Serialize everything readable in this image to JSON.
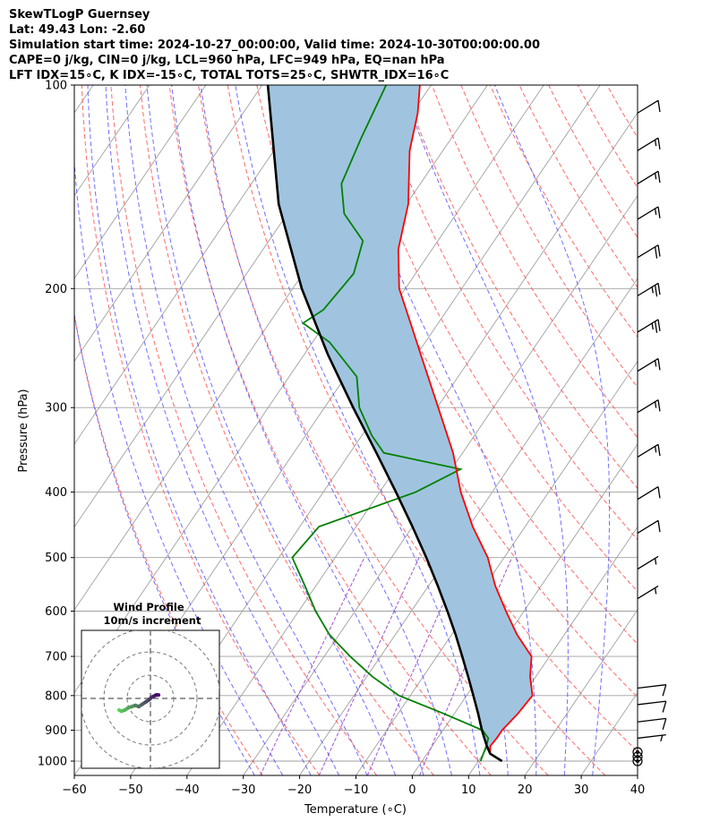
{
  "title_lines": [
    "SkewTLogP Guernsey",
    "Lat: 49.43   Lon: -2.60",
    "Simulation start time: 2024-10-27_00:00:00, Valid time: 2024-10-30T00:00:00.00",
    "CAPE=0 j/kg, CIN=0 j/kg, LCL=960 hPa, LFC=949 hPa, EQ=nan hPa",
    "LFT IDX=15∘C, K IDX=-15∘C, TOTAL TOTS=25∘C, SHWTR_IDX=16∘C"
  ],
  "colors": {
    "temperature": "#ff0000",
    "dewpoint": "#008000",
    "parcel": "#000000",
    "shading": "#a0c4df",
    "dry_adiabats": "#ff5050",
    "moist_adiabats": "#4a4aff",
    "mixing_ratio": "#9a3fc8",
    "isotherms": "#a0a0a0"
  },
  "chart_data": {
    "type": "skewt",
    "xlabel": "Temperature ($^{\\circ}$C)",
    "xlabel_display": "Temperature (∘C)",
    "ylabel": "Pressure (hPa)",
    "xlim": [
      -60,
      40
    ],
    "ylim": [
      1050,
      100
    ],
    "x_ticks": [
      -60,
      -50,
      -40,
      -30,
      -20,
      -10,
      0,
      10,
      20,
      30,
      40
    ],
    "x_tick_labels": [
      "−60",
      "−50",
      "−40",
      "−30",
      "−20",
      "−10",
      "0",
      "10",
      "20",
      "30",
      "40"
    ],
    "y_ticks": [
      1000,
      900,
      800,
      700,
      600,
      500,
      400,
      300,
      200,
      100
    ],
    "y_tick_labels": [
      "1000",
      "900",
      "800",
      "700",
      "600",
      "500",
      "400",
      "300",
      "200",
      "100"
    ],
    "temperature": {
      "p": [
        1000,
        975,
        950,
        925,
        900,
        850,
        800,
        750,
        700,
        650,
        600,
        550,
        500,
        450,
        400,
        350,
        300,
        250,
        225,
        200,
        175,
        150,
        125,
        110,
        100
      ],
      "t": [
        14.2,
        11.2,
        10.3,
        10.5,
        10.5,
        11.3,
        11.7,
        9.0,
        6.8,
        1.6,
        -3.2,
        -8.2,
        -12.9,
        -19.3,
        -25.6,
        -31.7,
        -39.8,
        -49.4,
        -54.9,
        -61.1,
        -66.0,
        -69.7,
        -75.9,
        -79.0,
        -82.0
      ]
    },
    "dewpoint": {
      "p": [
        1000,
        975,
        950,
        925,
        900,
        850,
        800,
        750,
        700,
        650,
        600,
        550,
        500,
        450,
        400,
        370,
        350,
        330,
        300,
        270,
        240,
        225,
        215,
        190,
        170,
        155,
        140,
        120,
        100
      ],
      "td": [
        10.4,
        10.0,
        9.6,
        9.0,
        7.0,
        -2.0,
        -12.0,
        -19.0,
        -25.4,
        -31.7,
        -37.0,
        -42.0,
        -47.6,
        -46.6,
        -33.6,
        -28.4,
        -44.0,
        -48.2,
        -53.8,
        -58.0,
        -67.0,
        -74.0,
        -72.0,
        -71.0,
        -73.3,
        -79.9,
        -84.0,
        -86.0,
        -88.0
      ]
    },
    "parcel": {
      "p": [
        1000,
        975,
        950,
        925,
        900,
        850,
        800,
        750,
        700,
        650,
        600,
        550,
        500,
        450,
        400,
        350,
        300,
        250,
        200,
        150,
        100
      ],
      "t": [
        14.2,
        11.2,
        9.7,
        8.3,
        6.9,
        4.2,
        1.2,
        -2.0,
        -5.5,
        -9.3,
        -13.6,
        -18.4,
        -23.8,
        -30.0,
        -37.1,
        -45.3,
        -54.9,
        -65.9,
        -78.4,
        -92.7,
        -109.0
      ]
    },
    "wind_barbs": [
      {
        "p": 1000,
        "speed_kt": 0
      },
      {
        "p": 985,
        "speed_kt": 0
      },
      {
        "p": 970,
        "speed_kt": 0
      },
      {
        "p": 925,
        "speed_kt": 5
      },
      {
        "p": 875,
        "speed_kt": 10
      },
      {
        "p": 825,
        "speed_kt": 10
      },
      {
        "p": 780,
        "speed_kt": 10
      },
      {
        "p": 575,
        "speed_kt": 5
      },
      {
        "p": 520,
        "speed_kt": 5
      },
      {
        "p": 460,
        "speed_kt": 10
      },
      {
        "p": 410,
        "speed_kt": 10
      },
      {
        "p": 355,
        "speed_kt": 15
      },
      {
        "p": 305,
        "speed_kt": 15
      },
      {
        "p": 265,
        "speed_kt": 15
      },
      {
        "p": 232,
        "speed_kt": 25
      },
      {
        "p": 205,
        "speed_kt": 25
      },
      {
        "p": 180,
        "speed_kt": 20
      },
      {
        "p": 158,
        "speed_kt": 15
      },
      {
        "p": 140,
        "speed_kt": 15
      },
      {
        "p": 125,
        "speed_kt": 15
      },
      {
        "p": 110,
        "speed_kt": 10
      }
    ]
  },
  "inset": {
    "title": "Wind Profile",
    "subtitle": "10m/s increment",
    "hodograph_u": [
      -13.5,
      -12.5,
      -11.0,
      -9.5,
      -8.0,
      -6.5,
      -5.0,
      -3.5,
      -2.0,
      -0.5,
      0.5,
      1.5,
      2.5,
      3.5
    ],
    "hodograph_v": [
      -5.0,
      -5.5,
      -5.0,
      -4.0,
      -3.5,
      -3.0,
      -3.5,
      -2.5,
      -1.5,
      -0.5,
      0.5,
      1.0,
      1.5,
      1.5
    ]
  }
}
